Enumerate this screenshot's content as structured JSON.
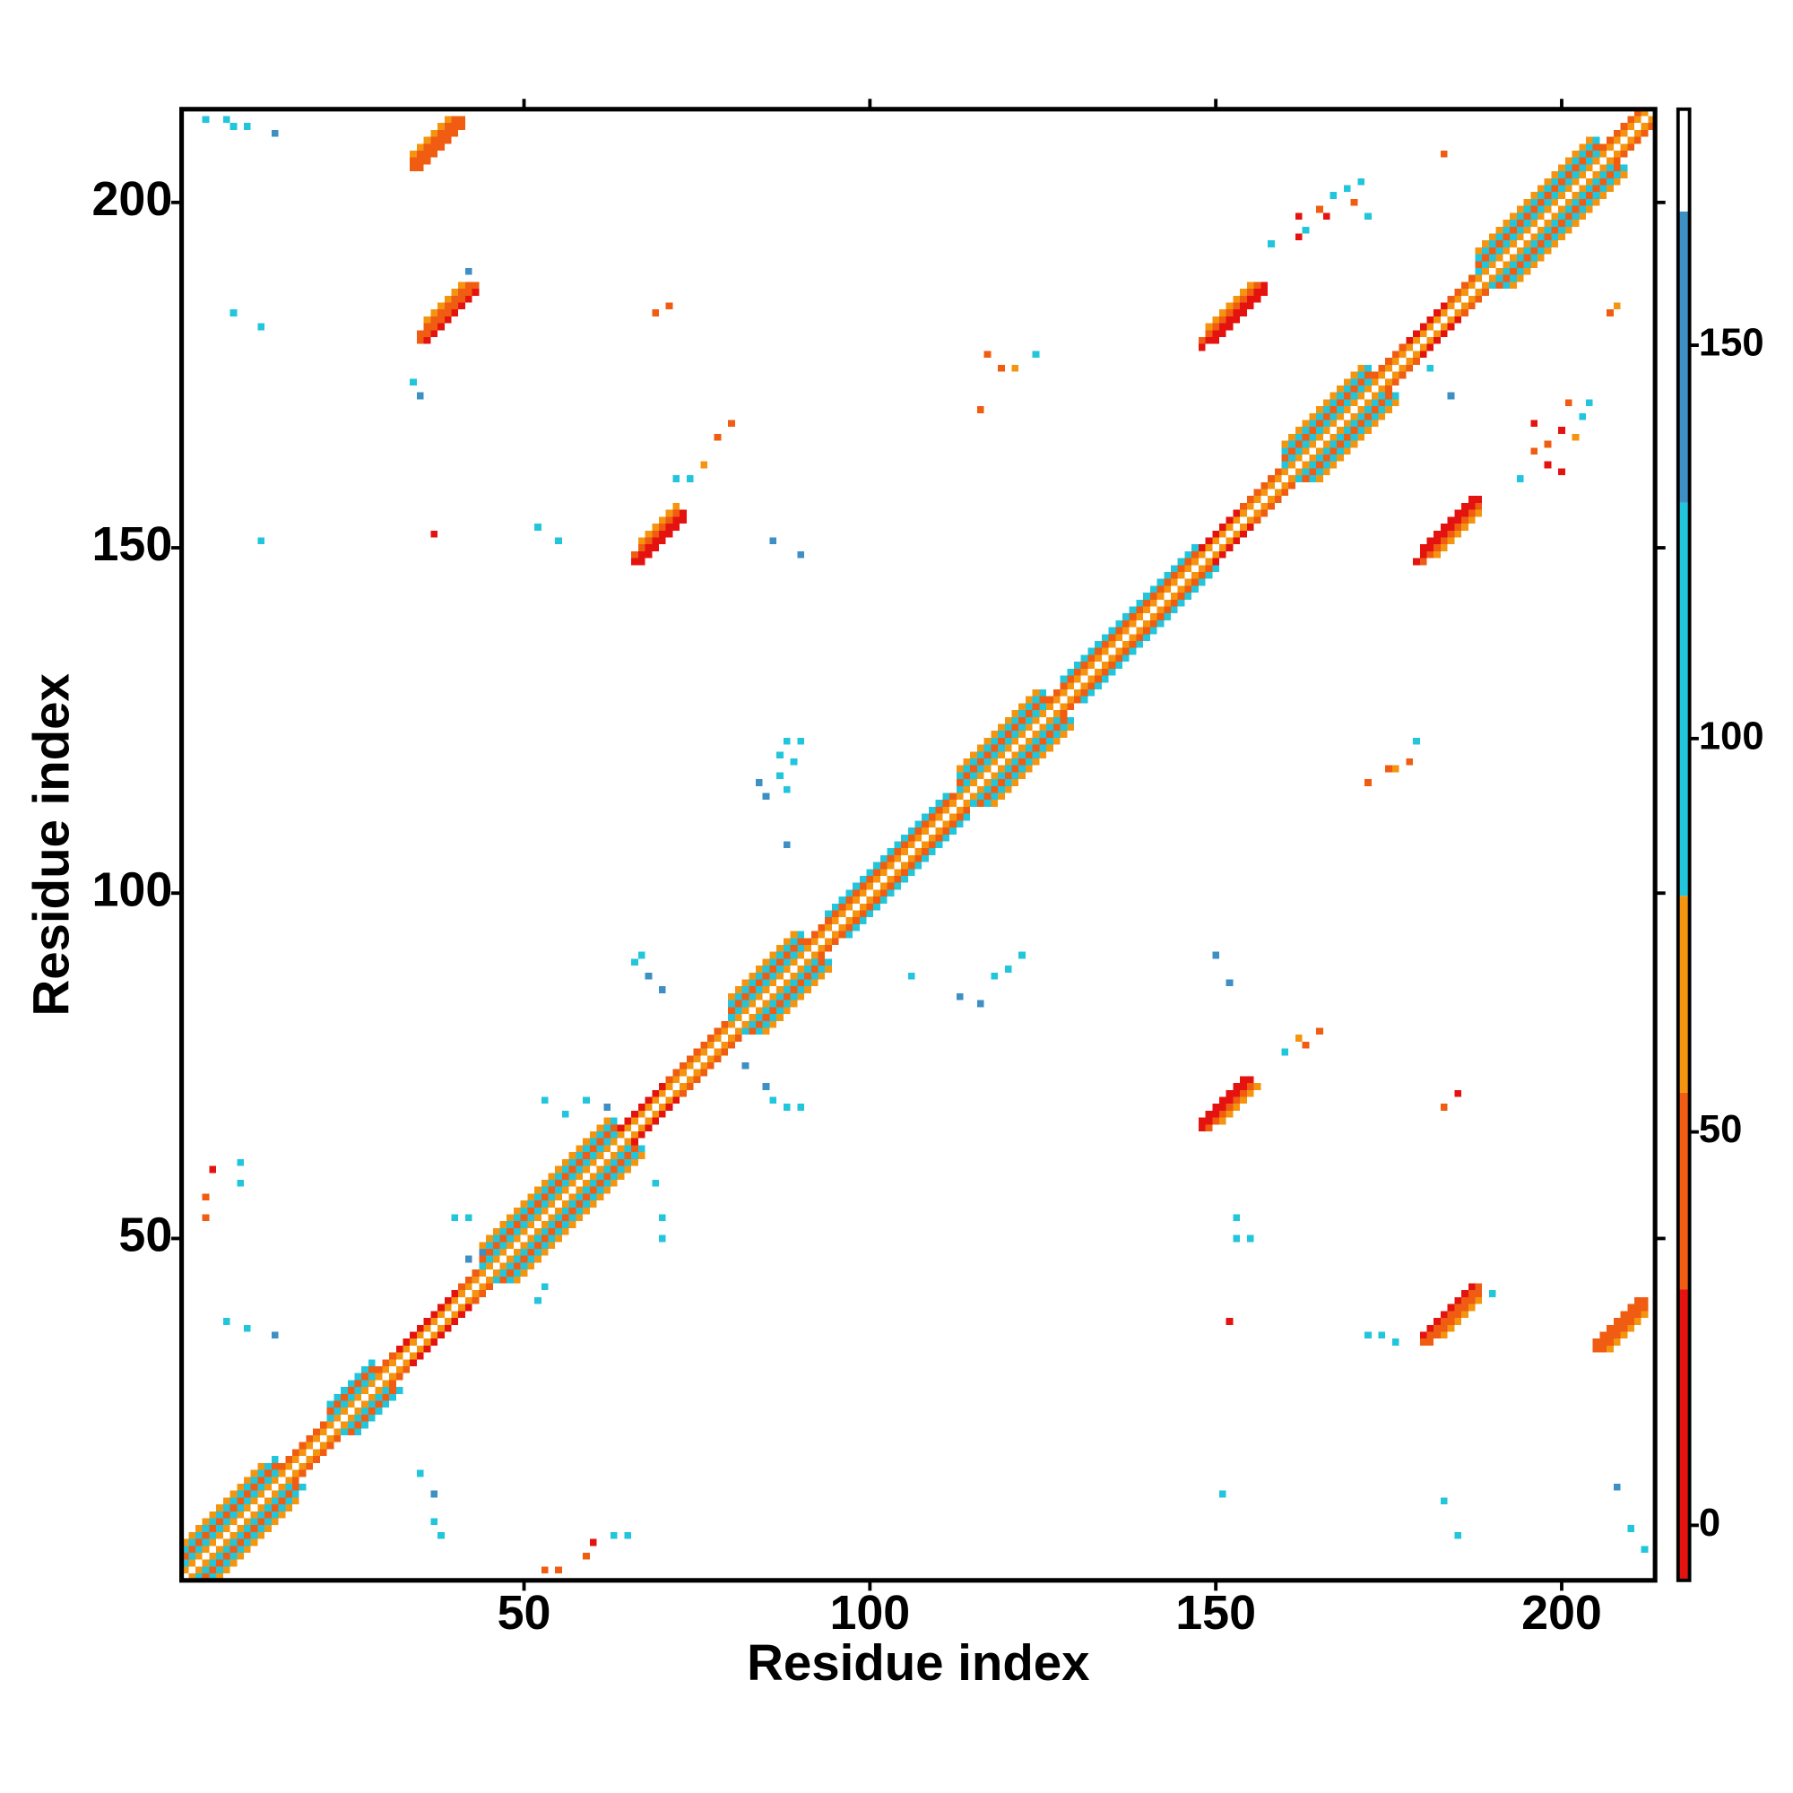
{
  "chart_data": {
    "type": "heatmap",
    "xlabel": "Residue index",
    "ylabel": "Residue index",
    "xlim": [
      0.5,
      213.5
    ],
    "ylim": [
      0.5,
      213.5
    ],
    "xticks": [
      50,
      100,
      150,
      200
    ],
    "yticks": [
      50,
      100,
      150,
      200
    ],
    "zlim": [
      -7,
      180
    ],
    "zticks": [
      0,
      50,
      100,
      150
    ],
    "color_levels": [
      -7,
      30,
      55,
      80,
      130,
      167,
      180
    ],
    "colors": [
      "#e4130f",
      "#f05c12",
      "#f5940f",
      "#21c6dc",
      "#3d8fc4",
      "#ffffff"
    ],
    "symmetric": true,
    "bands": [
      [
        1,
        1,
        212,
        55
      ],
      [
        2,
        1,
        14,
        95
      ],
      [
        2,
        15,
        21,
        40
      ],
      [
        2,
        22,
        28,
        95
      ],
      [
        2,
        29,
        31,
        40
      ],
      [
        2,
        32,
        40,
        8
      ],
      [
        2,
        41,
        43,
        40
      ],
      [
        2,
        44,
        63,
        95
      ],
      [
        2,
        64,
        70,
        8
      ],
      [
        2,
        71,
        79,
        40
      ],
      [
        2,
        80,
        90,
        95
      ],
      [
        2,
        91,
        112,
        45
      ],
      [
        2,
        113,
        125,
        95
      ],
      [
        2,
        126,
        147,
        45
      ],
      [
        2,
        148,
        153,
        8
      ],
      [
        2,
        154,
        159,
        40
      ],
      [
        2,
        160,
        172,
        95
      ],
      [
        2,
        173,
        177,
        40
      ],
      [
        2,
        178,
        183,
        8
      ],
      [
        2,
        184,
        187,
        40
      ],
      [
        2,
        188,
        205,
        95
      ],
      [
        2,
        206,
        211,
        40
      ],
      [
        3,
        1,
        14,
        40
      ],
      [
        3,
        22,
        28,
        40
      ],
      [
        3,
        44,
        63,
        40
      ],
      [
        3,
        80,
        90,
        40
      ],
      [
        3,
        94,
        111,
        100
      ],
      [
        3,
        113,
        125,
        40
      ],
      [
        3,
        128,
        147,
        100
      ],
      [
        3,
        160,
        172,
        40
      ],
      [
        3,
        188,
        205,
        40
      ],
      [
        4,
        1,
        14,
        105
      ],
      [
        4,
        22,
        28,
        105
      ],
      [
        4,
        44,
        63,
        105
      ],
      [
        4,
        80,
        90,
        105
      ],
      [
        4,
        113,
        125,
        105
      ],
      [
        4,
        160,
        172,
        105
      ],
      [
        4,
        188,
        205,
        105
      ],
      [
        5,
        1,
        12,
        60
      ],
      [
        5,
        44,
        62,
        60
      ],
      [
        5,
        80,
        89,
        60
      ],
      [
        5,
        113,
        124,
        60
      ],
      [
        5,
        160,
        171,
        60
      ],
      [
        5,
        188,
        204,
        60
      ],
      [
        170,
        35,
        41,
        45
      ],
      [
        171,
        34,
        41,
        40
      ],
      [
        172,
        34,
        40,
        50
      ],
      [
        173,
        34,
        39,
        60
      ],
      [
        144,
        36,
        43,
        15
      ],
      [
        145,
        35,
        43,
        30
      ],
      [
        146,
        35,
        42,
        45
      ],
      [
        147,
        36,
        41,
        60
      ],
      [
        81,
        67,
        73,
        10
      ],
      [
        82,
        66,
        73,
        20
      ],
      [
        83,
        66,
        72,
        40
      ],
      [
        84,
        67,
        72,
        55
      ],
      [
        30,
        150,
        157,
        10
      ],
      [
        31,
        148,
        157,
        20
      ],
      [
        32,
        148,
        156,
        40
      ],
      [
        33,
        149,
        155,
        55
      ]
    ],
    "cells": [
      [
        4,
        212,
        95
      ],
      [
        7,
        212,
        95
      ],
      [
        8,
        211,
        95
      ],
      [
        10,
        211,
        95
      ],
      [
        14,
        210,
        140
      ],
      [
        8,
        184,
        100
      ],
      [
        12,
        182,
        100
      ],
      [
        34,
        174,
        100
      ],
      [
        35,
        172,
        140
      ],
      [
        12,
        151,
        100
      ],
      [
        37,
        152,
        10
      ],
      [
        52,
        153,
        100
      ],
      [
        55,
        151,
        100
      ],
      [
        86,
        151,
        140
      ],
      [
        90,
        149,
        140
      ],
      [
        69,
        184,
        40
      ],
      [
        71,
        185,
        40
      ],
      [
        117,
        178,
        45
      ],
      [
        119,
        176,
        45
      ],
      [
        116,
        170,
        45
      ],
      [
        121,
        176,
        60
      ],
      [
        124,
        178,
        100
      ],
      [
        42,
        190,
        140
      ],
      [
        76,
        162,
        60
      ],
      [
        78,
        166,
        45
      ],
      [
        80,
        168,
        40
      ],
      [
        74,
        160,
        100
      ],
      [
        72,
        160,
        100
      ],
      [
        88,
        122,
        100
      ],
      [
        90,
        122,
        100
      ],
      [
        87,
        120,
        110
      ],
      [
        89,
        119,
        100
      ],
      [
        84,
        116,
        140
      ],
      [
        85,
        114,
        140
      ],
      [
        87,
        117,
        100
      ],
      [
        88,
        115,
        100
      ],
      [
        88,
        107,
        140
      ],
      [
        172,
        116,
        45
      ],
      [
        176,
        118,
        60
      ],
      [
        178,
        119,
        45
      ],
      [
        179,
        122,
        100
      ],
      [
        175,
        118,
        45
      ],
      [
        113,
        85,
        140
      ],
      [
        116,
        84,
        140
      ],
      [
        118,
        88,
        100
      ],
      [
        120,
        89,
        100
      ],
      [
        122,
        91,
        100
      ],
      [
        106,
        88,
        100
      ],
      [
        67,
        91,
        110
      ],
      [
        68,
        88,
        140
      ],
      [
        70,
        86,
        140
      ],
      [
        66,
        90,
        100
      ],
      [
        53,
        70,
        100
      ],
      [
        56,
        68,
        100
      ],
      [
        59,
        70,
        100
      ],
      [
        62,
        69,
        140
      ],
      [
        7,
        38,
        100
      ],
      [
        10,
        37,
        100
      ],
      [
        14,
        36,
        140
      ],
      [
        5,
        60,
        10
      ],
      [
        4,
        56,
        45
      ],
      [
        4,
        53,
        45
      ],
      [
        9,
        58,
        100
      ],
      [
        9,
        61,
        100
      ],
      [
        40,
        53,
        100
      ],
      [
        42,
        53,
        100
      ],
      [
        42,
        47,
        140
      ],
      [
        44,
        48,
        140
      ],
      [
        35,
        16,
        100
      ],
      [
        37,
        13,
        140
      ],
      [
        37,
        9,
        100
      ],
      [
        38,
        7,
        100
      ],
      [
        59,
        4,
        30
      ],
      [
        55,
        2,
        45
      ],
      [
        53,
        2,
        45
      ],
      [
        60,
        6,
        10
      ],
      [
        63,
        7,
        100
      ],
      [
        65,
        7,
        100
      ],
      [
        151,
        13,
        100
      ],
      [
        183,
        12,
        100
      ],
      [
        185,
        7,
        100
      ],
      [
        208,
        14,
        140
      ],
      [
        210,
        8,
        100
      ],
      [
        212,
        5,
        100
      ],
      [
        172,
        36,
        100
      ],
      [
        174,
        36,
        100
      ],
      [
        176,
        35,
        100
      ],
      [
        190,
        42,
        100
      ],
      [
        152,
        38,
        10
      ],
      [
        153,
        50,
        100
      ],
      [
        153,
        53,
        100
      ],
      [
        155,
        50,
        100
      ],
      [
        150,
        91,
        140
      ],
      [
        152,
        87,
        140
      ],
      [
        165,
        80,
        45
      ],
      [
        163,
        78,
        45
      ],
      [
        160,
        77,
        100
      ],
      [
        162,
        79,
        60
      ],
      [
        183,
        69,
        30
      ],
      [
        185,
        71,
        20
      ],
      [
        82,
        75,
        140
      ],
      [
        85,
        72,
        140
      ],
      [
        88,
        69,
        100
      ],
      [
        90,
        69,
        100
      ],
      [
        86,
        70,
        100
      ],
      [
        52,
        41,
        100
      ],
      [
        53,
        43,
        100
      ],
      [
        70,
        53,
        100
      ],
      [
        70,
        50,
        100
      ],
      [
        69,
        58,
        100
      ],
      [
        183,
        207,
        45
      ],
      [
        162,
        198,
        10
      ],
      [
        163,
        196,
        100
      ],
      [
        165,
        199,
        45
      ],
      [
        166,
        198,
        10
      ],
      [
        167,
        201,
        100
      ],
      [
        169,
        202,
        100
      ],
      [
        170,
        200,
        45
      ],
      [
        171,
        203,
        100
      ],
      [
        172,
        198,
        100
      ],
      [
        162,
        195,
        10
      ],
      [
        158,
        194,
        100
      ],
      [
        196,
        168,
        10
      ],
      [
        198,
        165,
        45
      ],
      [
        200,
        167,
        20
      ],
      [
        202,
        166,
        60
      ],
      [
        203,
        169,
        100
      ],
      [
        204,
        171,
        100
      ],
      [
        198,
        162,
        10
      ],
      [
        196,
        164,
        45
      ],
      [
        200,
        161,
        20
      ],
      [
        194,
        160,
        100
      ],
      [
        201,
        171,
        45
      ],
      [
        207,
        184,
        45
      ],
      [
        208,
        185,
        60
      ],
      [
        181,
        176,
        100
      ],
      [
        184,
        172,
        140
      ],
      [
        176,
        178,
        45
      ]
    ]
  }
}
